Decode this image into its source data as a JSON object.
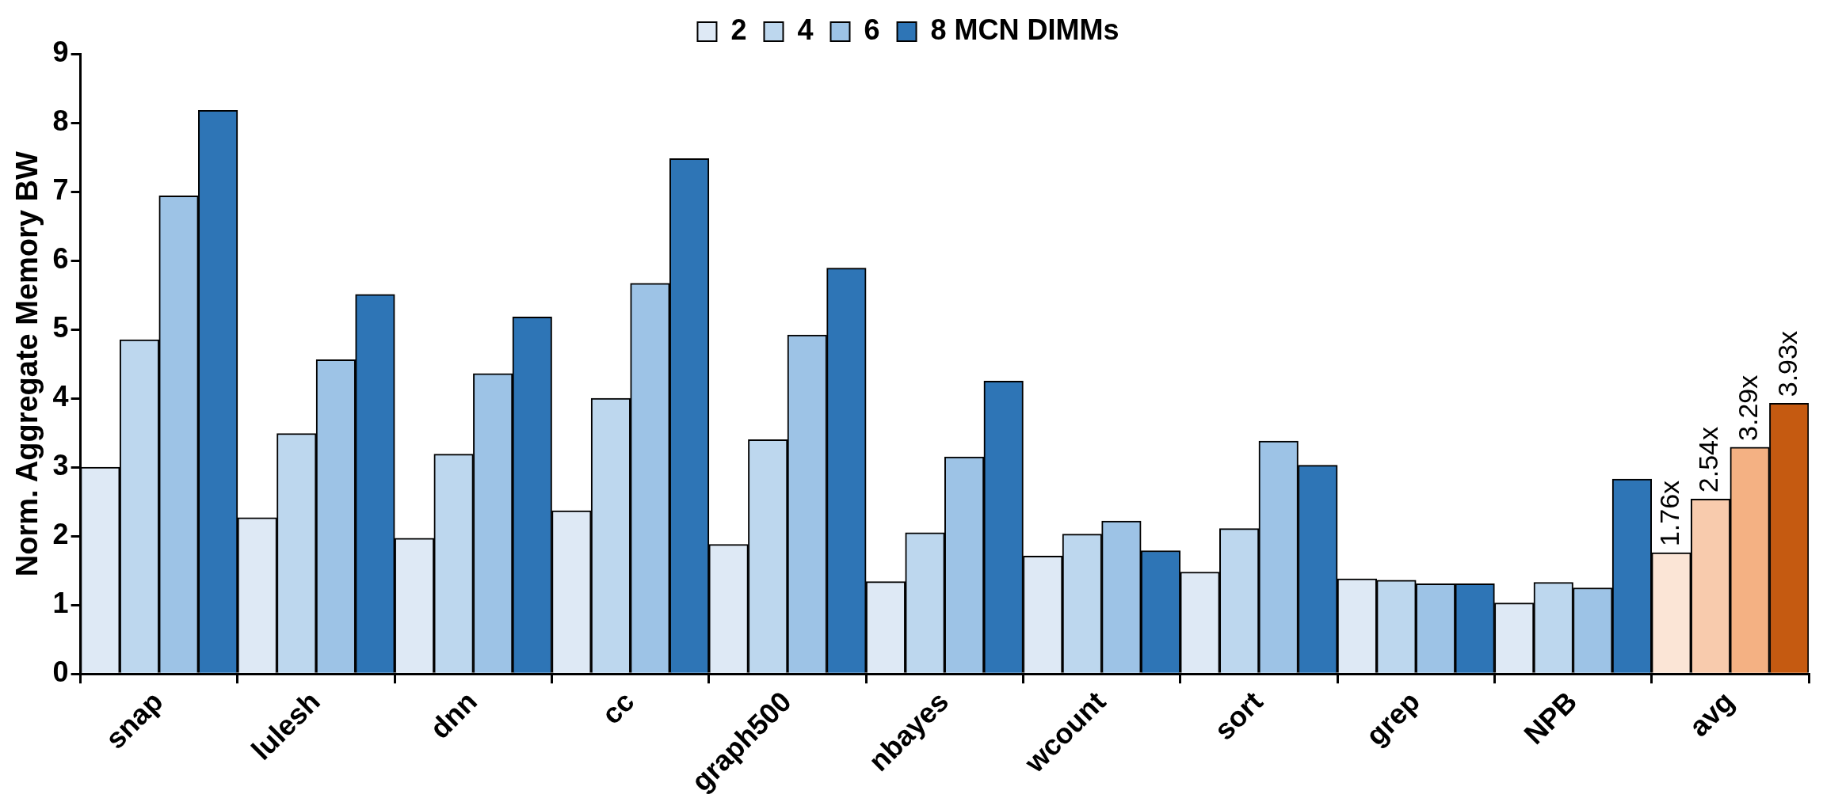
{
  "chart_data": {
    "type": "bar",
    "ylabel": "Norm. Aggregate Memory BW",
    "categories": [
      "snap",
      "lulesh",
      "dnn",
      "cc",
      "graph500",
      "nbayes",
      "wcount",
      "sort",
      "grep",
      "NPB",
      "avg"
    ],
    "series": [
      {
        "name": "2",
        "color": "#dee9f5",
        "colors": [
          "#dee9f5",
          "#dee9f5",
          "#dee9f5",
          "#dee9f5",
          "#dee9f5",
          "#dee9f5",
          "#dee9f5",
          "#dee9f5",
          "#dee9f5",
          "#dee9f5",
          "#fbe5d6"
        ],
        "values": [
          3.0,
          2.27,
          1.97,
          2.37,
          1.88,
          1.34,
          1.71,
          1.48,
          1.38,
          1.03,
          1.76
        ],
        "value_labels": [
          null,
          null,
          null,
          null,
          null,
          null,
          null,
          null,
          null,
          null,
          "1.76x"
        ]
      },
      {
        "name": "4",
        "color": "#bdd7ee",
        "colors": [
          "#bdd7ee",
          "#bdd7ee",
          "#bdd7ee",
          "#bdd7ee",
          "#bdd7ee",
          "#bdd7ee",
          "#bdd7ee",
          "#bdd7ee",
          "#bdd7ee",
          "#bdd7ee",
          "#f8cbad"
        ],
        "values": [
          4.85,
          3.49,
          3.19,
          4.0,
          3.4,
          2.05,
          2.03,
          2.11,
          1.36,
          1.33,
          2.54
        ],
        "value_labels": [
          null,
          null,
          null,
          null,
          null,
          null,
          null,
          null,
          null,
          null,
          "2.54x"
        ]
      },
      {
        "name": "6",
        "color": "#9dc3e6",
        "colors": [
          "#9dc3e6",
          "#9dc3e6",
          "#9dc3e6",
          "#9dc3e6",
          "#9dc3e6",
          "#9dc3e6",
          "#9dc3e6",
          "#9dc3e6",
          "#9dc3e6",
          "#9dc3e6",
          "#f4b183"
        ],
        "values": [
          6.94,
          4.56,
          4.36,
          5.67,
          4.92,
          3.15,
          2.22,
          3.38,
          1.31,
          1.25,
          3.29
        ],
        "value_labels": [
          null,
          null,
          null,
          null,
          null,
          null,
          null,
          null,
          null,
          null,
          "3.29x"
        ]
      },
      {
        "name": "8 MCN DIMMs",
        "color": "#2e75b6",
        "colors": [
          "#2e75b6",
          "#2e75b6",
          "#2e75b6",
          "#2e75b6",
          "#2e75b6",
          "#2e75b6",
          "#2e75b6",
          "#2e75b6",
          "#2e75b6",
          "#2e75b6",
          "#c55a11"
        ],
        "values": [
          8.18,
          5.51,
          5.18,
          7.48,
          5.89,
          4.25,
          1.79,
          3.03,
          1.31,
          2.83,
          3.93
        ],
        "value_labels": [
          null,
          null,
          null,
          null,
          null,
          null,
          null,
          null,
          null,
          null,
          "3.93x"
        ]
      }
    ],
    "ylim": [
      0,
      9
    ],
    "yticks": [
      0,
      1,
      2,
      3,
      4,
      5,
      6,
      7,
      8,
      9
    ],
    "grid": false,
    "legend": "top"
  }
}
